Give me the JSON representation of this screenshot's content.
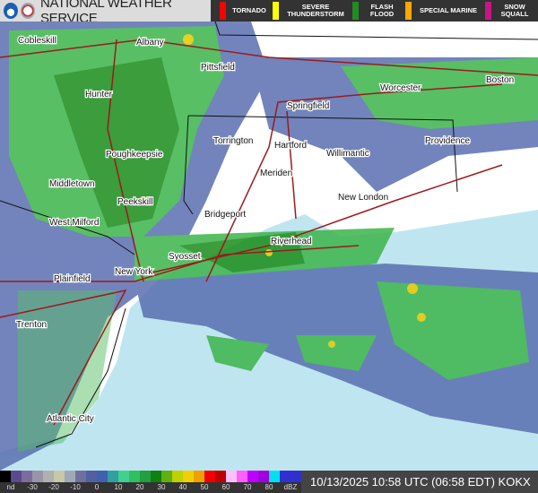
{
  "header": {
    "title": "NATIONAL WEATHER SERVICE",
    "warnings": [
      {
        "label": "TORNADO",
        "color": "#ff0000"
      },
      {
        "label": "SEVERE THUNDERSTORM",
        "color": "#ffff00"
      },
      {
        "label": "FLASH FLOOD",
        "color": "#228b22"
      },
      {
        "label": "SPECIAL MARINE",
        "color": "#ffa500"
      },
      {
        "label": "SNOW SQUALL",
        "color": "#c71585"
      }
    ]
  },
  "map": {
    "cities": [
      "Cobleskill",
      "Albany",
      "Pittsfield",
      "Hunter",
      "Springfield",
      "Worcester",
      "Boston",
      "Torrington",
      "Hartford",
      "Providence",
      "Poughkeepsie",
      "Willimantic",
      "Meriden",
      "Middletown",
      "Peekskill",
      "New London",
      "Bridgeport",
      "West Milford",
      "Riverhead",
      "Syosset",
      "New York",
      "Plainfield",
      "Trenton",
      "Atlantic City"
    ],
    "colors": {
      "ocean": "#bfe6f0",
      "land": "#ffffff",
      "light_rain": "#5a6fb0",
      "moderate": "#3cb44b",
      "heavy": "#1a8c1a",
      "intense": "#e6c800"
    }
  },
  "legend": {
    "labels": [
      "nd",
      "-30",
      "-20",
      "-10",
      "0",
      "10",
      "20",
      "30",
      "40",
      "50",
      "60",
      "70",
      "80",
      "dBZ"
    ],
    "colors": [
      "#000000",
      "#5b4a8c",
      "#7a6ea0",
      "#9a94a8",
      "#b0b0b0",
      "#c8c8a8",
      "#a0a8b8",
      "#7070a0",
      "#5060a0",
      "#4060b0",
      "#30a0a0",
      "#40d090",
      "#30c060",
      "#20a040",
      "#108010",
      "#60b010",
      "#c0d000",
      "#f0d000",
      "#f0a000",
      "#f00000",
      "#c00000",
      "#ffc0ff",
      "#ff60ff",
      "#c000ff",
      "#a000e0",
      "#00e0f0",
      "#3030d0",
      "#3030d0"
    ]
  },
  "status": {
    "timestamp": "10/13/2025 10:58 UTC (06:58 EDT) KOKX"
  }
}
